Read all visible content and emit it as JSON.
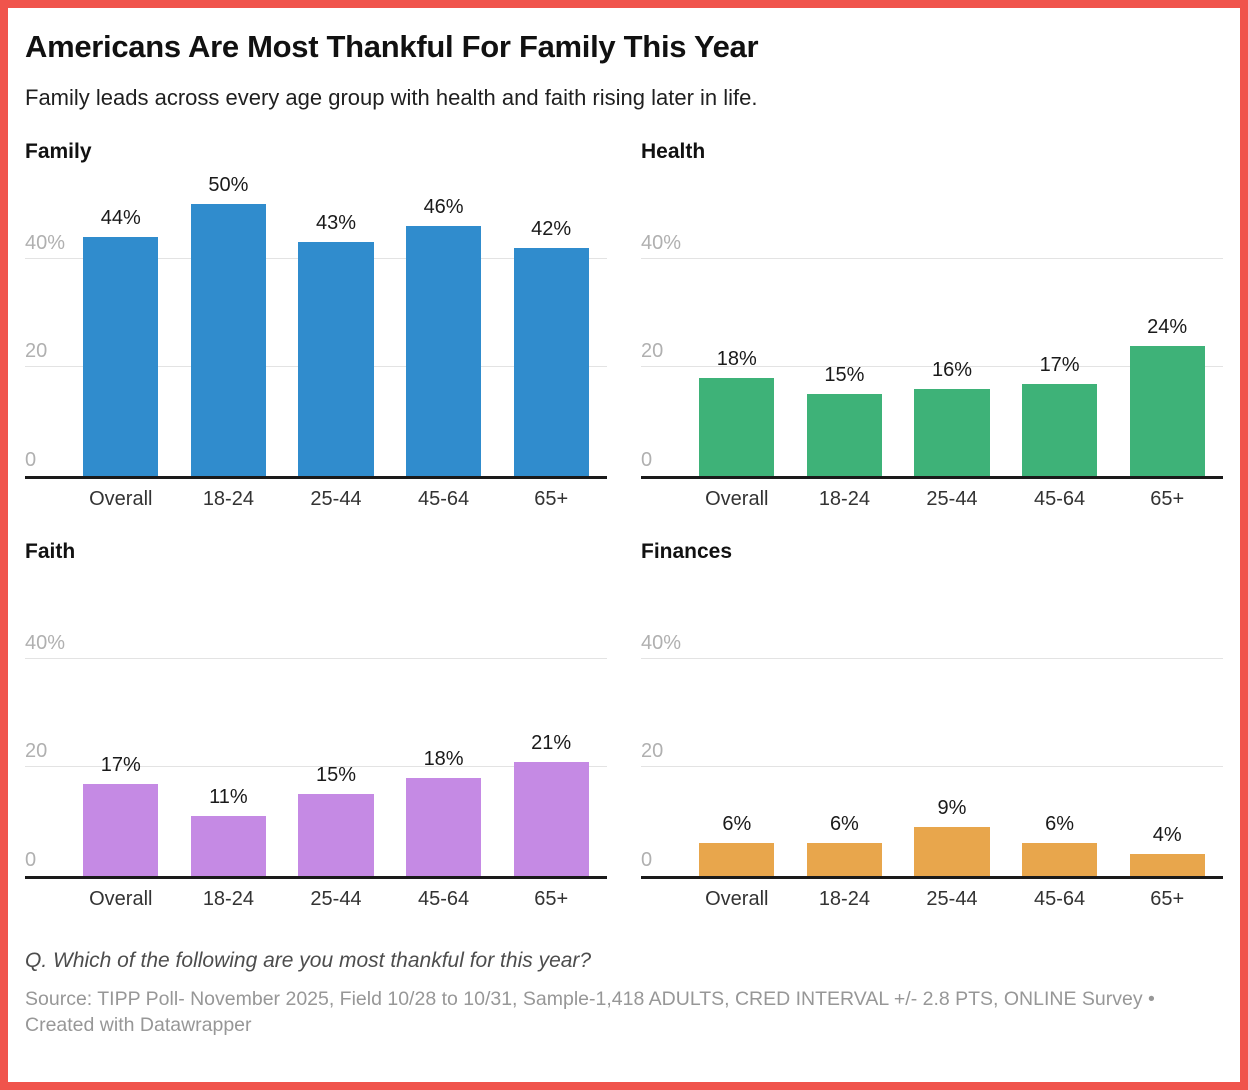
{
  "header": {
    "title": "Americans Are Most Thankful For Family This Year",
    "subtitle": "Family leads across every age group with health and faith rising later in life."
  },
  "footer": {
    "question": "Q. Which of the following are you most thankful for this year?",
    "source": "Source: TIPP Poll- November 2025, Field 10/28 to 10/31, Sample-1,418 ADULTS, CRED INTERVAL +/- 2.8 PTS, ONLINE Survey • Created with Datawrapper"
  },
  "colors": {
    "frame_border": "#f0544c",
    "family_bar": "#308ccd",
    "health_bar": "#3eb278",
    "faith_bar": "#c58ae4",
    "finances_bar": "#e8a64c",
    "gridline": "#e3e3e3",
    "axis_line": "#1a1a1a",
    "tick_label": "#b0b0b0",
    "x_label": "#333333",
    "value_label": "#1a1a1a"
  },
  "chart_data": [
    {
      "type": "bar",
      "title": "Family",
      "categories": [
        "Overall",
        "18-24",
        "25-44",
        "45-64",
        "65+"
      ],
      "values": [
        44,
        50,
        43,
        46,
        42
      ],
      "value_suffix": "%",
      "color": "#308ccd",
      "ylim": [
        0,
        56
      ],
      "yticks": [
        {
          "value": 0,
          "label": "0"
        },
        {
          "value": 20,
          "label": "20"
        },
        {
          "value": 40,
          "label": "40%"
        }
      ],
      "grid": true,
      "legend": "none"
    },
    {
      "type": "bar",
      "title": "Health",
      "categories": [
        "Overall",
        "18-24",
        "25-44",
        "45-64",
        "65+"
      ],
      "values": [
        18,
        15,
        16,
        17,
        24
      ],
      "value_suffix": "%",
      "color": "#3eb278",
      "ylim": [
        0,
        56
      ],
      "yticks": [
        {
          "value": 0,
          "label": "0"
        },
        {
          "value": 20,
          "label": "20"
        },
        {
          "value": 40,
          "label": "40%"
        }
      ],
      "grid": true,
      "legend": "none"
    },
    {
      "type": "bar",
      "title": "Faith",
      "categories": [
        "Overall",
        "18-24",
        "25-44",
        "45-64",
        "65+"
      ],
      "values": [
        17,
        11,
        15,
        18,
        21
      ],
      "value_suffix": "%",
      "color": "#c58ae4",
      "ylim": [
        0,
        56
      ],
      "yticks": [
        {
          "value": 0,
          "label": "0"
        },
        {
          "value": 20,
          "label": "20"
        },
        {
          "value": 40,
          "label": "40%"
        }
      ],
      "grid": true,
      "legend": "none"
    },
    {
      "type": "bar",
      "title": "Finances",
      "categories": [
        "Overall",
        "18-24",
        "25-44",
        "45-64",
        "65+"
      ],
      "values": [
        6,
        6,
        9,
        6,
        4
      ],
      "value_suffix": "%",
      "color": "#e8a64c",
      "ylim": [
        0,
        56
      ],
      "yticks": [
        {
          "value": 0,
          "label": "0"
        },
        {
          "value": 20,
          "label": "20"
        },
        {
          "value": 40,
          "label": "40%"
        }
      ],
      "grid": true,
      "legend": "none"
    }
  ]
}
